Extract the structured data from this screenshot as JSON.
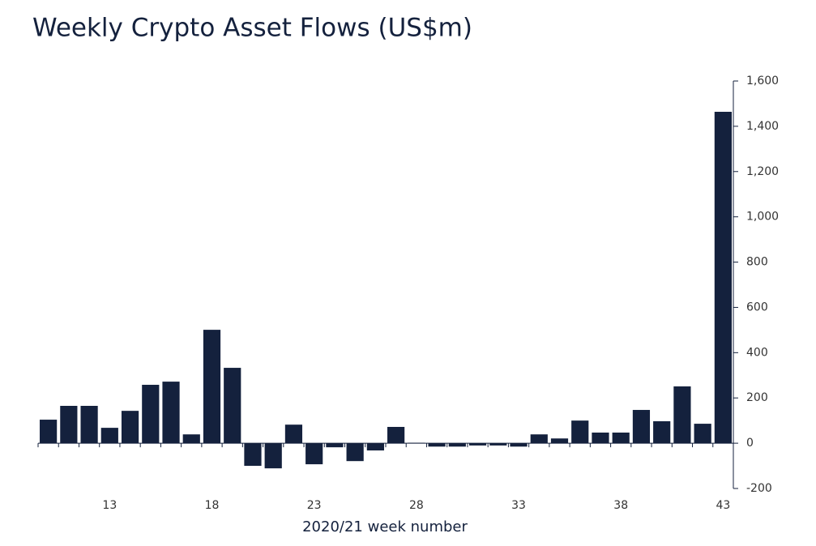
{
  "chart_data": {
    "type": "bar",
    "title": "Weekly Crypto Asset Flows (US$m)",
    "x_label": "2020/21 week number",
    "categories": [
      null,
      null,
      null,
      "13",
      null,
      null,
      null,
      null,
      "18",
      null,
      null,
      null,
      null,
      "23",
      null,
      null,
      null,
      null,
      "28",
      null,
      null,
      null,
      null,
      "33",
      null,
      null,
      null,
      null,
      "38",
      null,
      null,
      null,
      null,
      "43"
    ],
    "values": [
      104,
      165,
      165,
      68,
      143,
      258,
      272,
      39,
      501,
      333,
      -100,
      -111,
      82,
      -93,
      -18,
      -79,
      -32,
      72,
      2,
      -15,
      -15,
      -10,
      -10,
      -15,
      39,
      21,
      100,
      47,
      47,
      147,
      97,
      251,
      86,
      1464
    ],
    "color": "#14213d",
    "ylim": [
      -200,
      1600
    ],
    "yticks": [
      -200,
      0,
      200,
      400,
      600,
      800,
      {
        "value": 1000,
        "label": "1,000"
      },
      {
        "value": 1200,
        "label": "1,200"
      },
      {
        "value": 1400,
        "label": "1,400"
      },
      {
        "value": 1600,
        "label": "1,600"
      }
    ],
    "y_axis_side": "right",
    "grid": false
  }
}
